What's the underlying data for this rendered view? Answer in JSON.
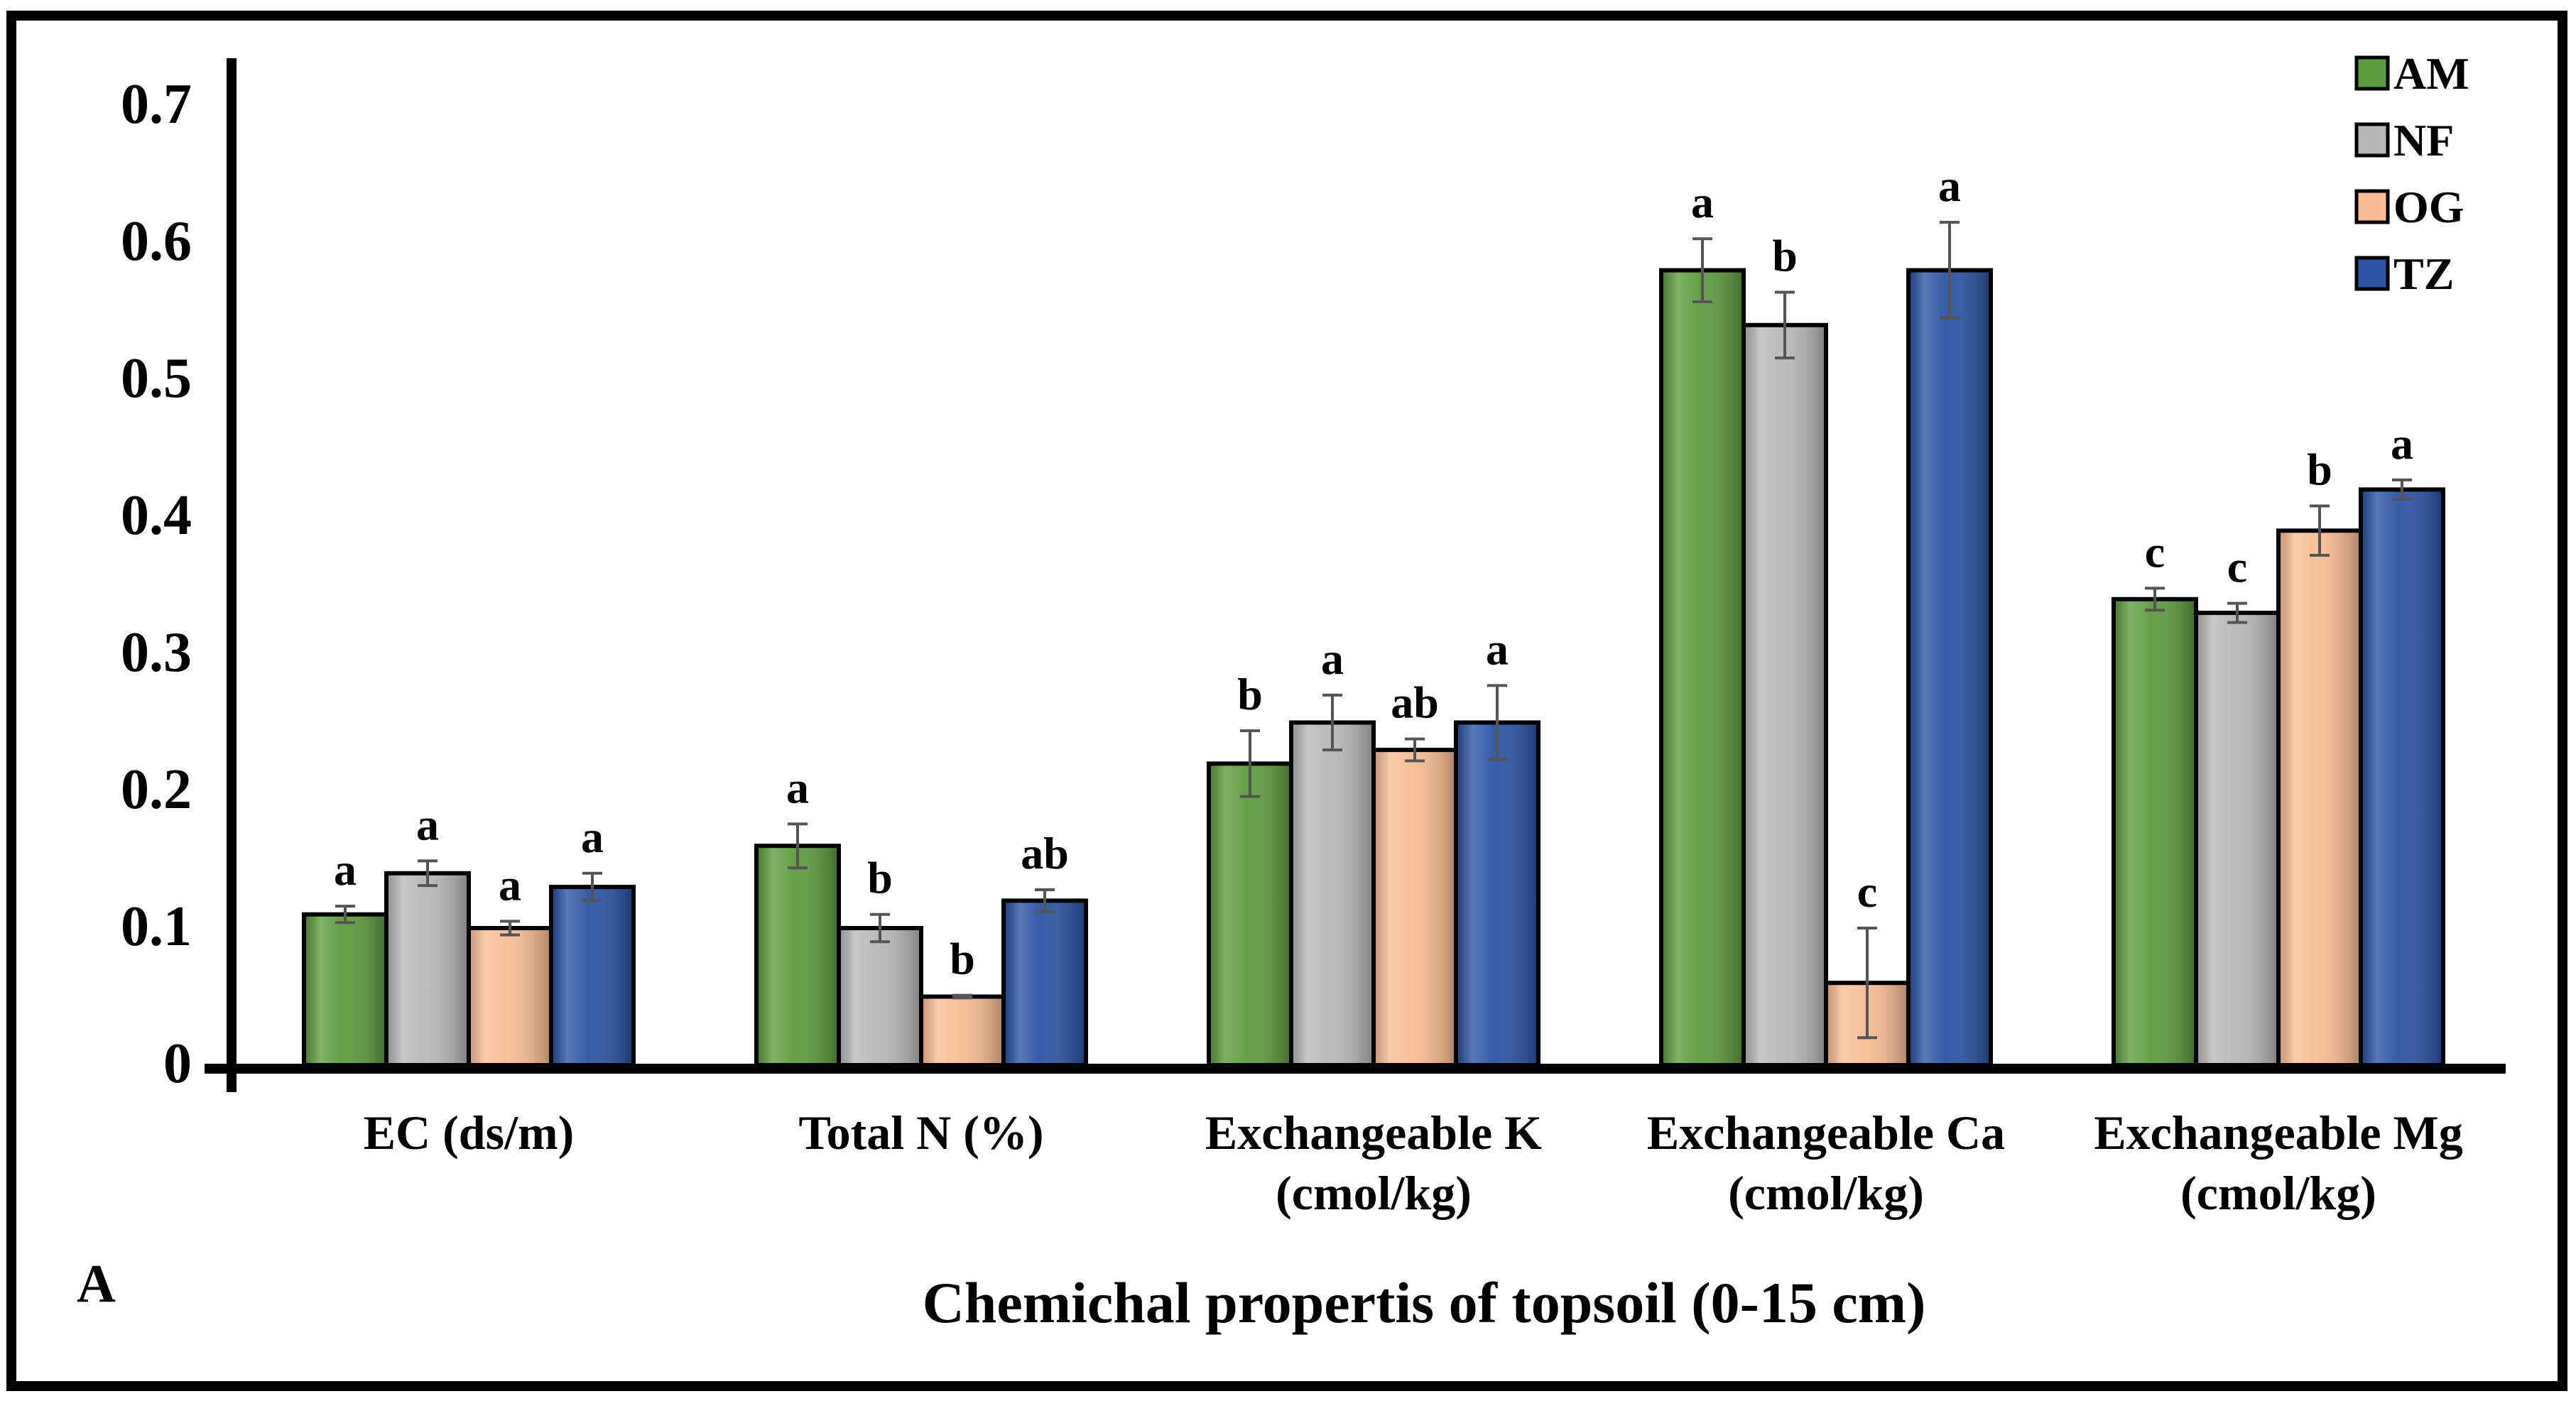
{
  "panel_label": "A",
  "colors": {
    "AM": "#5e9b3f",
    "NF": "#b8b8b8",
    "OG": "#f8bd94",
    "TZ": "#2c53a4",
    "frame": "#000000",
    "error_bar": "#555555"
  },
  "chart_data": {
    "type": "bar",
    "title": "",
    "xlabel": "Chemichal propertis of topsoil (0-15 cm)",
    "ylabel": "",
    "ylim": [
      0,
      0.7
    ],
    "yticks": [
      0,
      0.1,
      0.2,
      0.3,
      0.4,
      0.5,
      0.6,
      0.7
    ],
    "ytick_labels": [
      "0",
      "0.1",
      "0.2",
      "0.3",
      "0.4",
      "0.5",
      "0.6",
      "0.7"
    ],
    "categories": [
      [
        "EC (ds/m)"
      ],
      [
        "Total N (%)"
      ],
      [
        "Exchangeable K",
        "(cmol/kg)"
      ],
      [
        "Exchangeable Ca",
        "(cmol/kg)"
      ],
      [
        "Exchangeable Mg",
        "(cmol/kg)"
      ]
    ],
    "legend_position": "top-right",
    "series": [
      {
        "name": "AM",
        "values": [
          0.11,
          0.16,
          0.22,
          0.58,
          0.34
        ],
        "errors": [
          0.006,
          0.016,
          0.024,
          0.023,
          0.008
        ],
        "letters": [
          "a",
          "a",
          "b",
          "a",
          "c"
        ]
      },
      {
        "name": "NF",
        "values": [
          0.14,
          0.1,
          0.25,
          0.54,
          0.33
        ],
        "errors": [
          0.009,
          0.01,
          0.02,
          0.024,
          0.007
        ],
        "letters": [
          "a",
          "b",
          "a",
          "b",
          "c"
        ]
      },
      {
        "name": "OG",
        "values": [
          0.1,
          0.05,
          0.23,
          0.06,
          0.39
        ],
        "errors": [
          0.005,
          0.001,
          0.008,
          0.04,
          0.018
        ],
        "letters": [
          "a",
          "b",
          "ab",
          "c",
          "b"
        ]
      },
      {
        "name": "TZ",
        "values": [
          0.13,
          0.12,
          0.25,
          0.58,
          0.42
        ],
        "errors": [
          0.01,
          0.008,
          0.027,
          0.035,
          0.007
        ],
        "letters": [
          "a",
          "ab",
          "a",
          "a",
          "a"
        ]
      }
    ]
  }
}
